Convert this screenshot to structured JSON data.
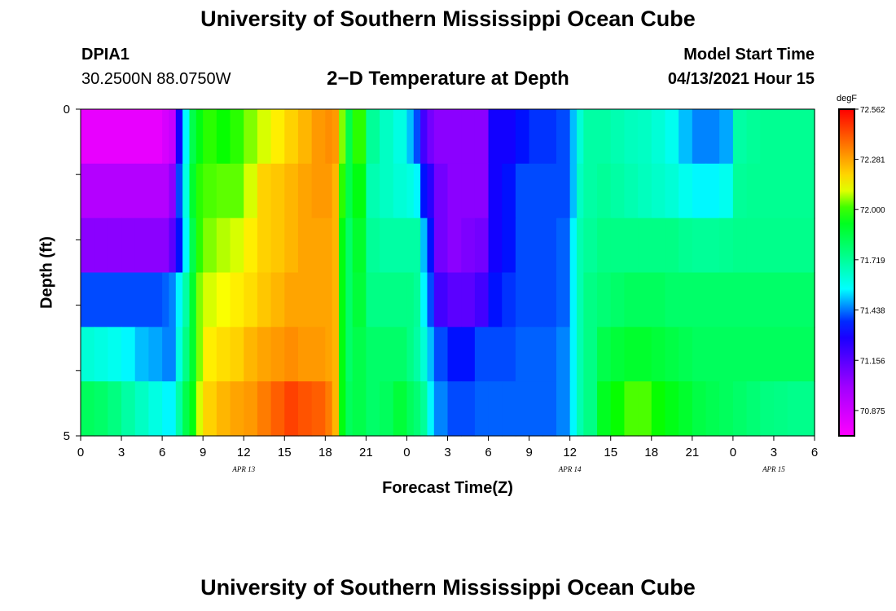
{
  "header": {
    "title_top": "University of Southern Mississippi Ocean Cube",
    "title_bottom": "University of Southern Mississippi Ocean Cube",
    "station_id": "DPIA1",
    "station_coords": "30.2500N  88.0750W",
    "plot_title": "2−D Temperature at Depth",
    "model_start_label": "Model Start Time",
    "model_start_value": "04/13/2021 Hour 15"
  },
  "chart_data": {
    "type": "heatmap",
    "title": "2−D Temperature at Depth",
    "xlabel": "Forecast Time(Z)",
    "ylabel": "Depth (ft)",
    "x_range_hours": [
      0,
      54
    ],
    "y_range_ft": [
      0,
      5
    ],
    "y_tick_labels": [
      "0",
      "5"
    ],
    "x_tick_labels": [
      "0",
      "3",
      "6",
      "9",
      "12",
      "15",
      "18",
      "21",
      "0",
      "3",
      "6",
      "9",
      "12",
      "15",
      "18",
      "21",
      "0",
      "3",
      "6"
    ],
    "date_labels": [
      {
        "text": "APR 13",
        "hour": 12
      },
      {
        "text": "APR 14",
        "hour": 36
      },
      {
        "text": "APR 15",
        "hour": 51
      }
    ],
    "colorbar": {
      "unit": "degF",
      "min": 70.733,
      "max": 72.562,
      "tick_labels": [
        "72.562",
        "72.281",
        "72.000",
        "71.719",
        "71.438",
        "71.156",
        "70.875"
      ],
      "tick_values": [
        72.562,
        72.281,
        72.0,
        71.719,
        71.438,
        71.156,
        70.875
      ]
    },
    "time_hours": [
      0,
      1,
      2,
      3,
      4,
      5,
      6,
      6.5,
      7,
      7.5,
      8,
      8.5,
      9,
      10,
      11,
      12,
      13,
      14,
      15,
      16,
      17,
      18,
      18.5,
      19,
      19.5,
      20,
      21,
      22,
      23,
      24,
      24.5,
      25,
      25.5,
      26,
      27,
      28,
      29,
      30,
      31,
      32,
      33,
      34,
      35,
      36,
      36.5,
      37,
      38,
      39,
      40,
      41,
      42,
      43,
      44,
      45,
      46,
      47,
      48,
      49,
      50,
      51,
      52,
      53,
      54
    ],
    "depth_levels_ft": [
      0,
      1,
      2,
      3,
      4,
      5
    ],
    "temperatures_degF": [
      [
        70.8,
        70.8,
        70.8,
        70.8,
        70.8,
        70.8,
        70.85,
        70.9,
        71.3,
        71.55,
        71.85,
        71.95,
        72.0,
        71.98,
        72.0,
        72.05,
        72.1,
        72.15,
        72.2,
        72.25,
        72.3,
        72.32,
        72.3,
        72.05,
        71.85,
        72.0,
        71.72,
        71.65,
        71.6,
        71.5,
        71.4,
        71.2,
        71.1,
        71.05,
        71.05,
        71.05,
        71.05,
        71.3,
        71.3,
        71.35,
        71.38,
        71.38,
        71.4,
        71.5,
        71.62,
        71.7,
        71.7,
        71.68,
        71.66,
        71.65,
        71.62,
        71.58,
        71.5,
        71.45,
        71.45,
        71.48,
        71.7,
        71.72,
        71.73,
        71.73,
        71.73,
        71.73,
        71.73
      ],
      [
        70.95,
        70.95,
        70.95,
        70.95,
        70.95,
        70.95,
        70.95,
        71.05,
        71.4,
        71.6,
        71.9,
        72.0,
        72.02,
        72.03,
        72.03,
        72.1,
        72.2,
        72.22,
        72.25,
        72.28,
        72.3,
        72.3,
        72.25,
        72.0,
        71.85,
        71.95,
        71.68,
        71.65,
        71.62,
        71.6,
        71.55,
        71.35,
        71.25,
        71.1,
        71.05,
        71.05,
        71.05,
        71.3,
        71.35,
        71.4,
        71.4,
        71.4,
        71.4,
        71.5,
        71.65,
        71.7,
        71.72,
        71.7,
        71.68,
        71.66,
        71.64,
        71.62,
        71.58,
        71.55,
        71.55,
        71.58,
        71.72,
        71.73,
        71.73,
        71.73,
        71.73,
        71.73,
        71.73
      ],
      [
        71.05,
        71.05,
        71.05,
        71.05,
        71.05,
        71.05,
        71.05,
        71.15,
        71.35,
        71.55,
        71.85,
        72.0,
        72.05,
        72.08,
        72.1,
        72.15,
        72.2,
        72.22,
        72.25,
        72.28,
        72.28,
        72.28,
        72.25,
        71.95,
        71.8,
        71.9,
        71.72,
        71.7,
        71.7,
        71.7,
        71.7,
        71.5,
        71.35,
        71.1,
        71.05,
        71.08,
        71.1,
        71.3,
        71.35,
        71.4,
        71.4,
        71.4,
        71.42,
        71.55,
        71.68,
        71.72,
        71.75,
        71.75,
        71.75,
        71.75,
        71.75,
        71.75,
        71.73,
        71.72,
        71.72,
        71.73,
        71.74,
        71.74,
        71.74,
        71.74,
        71.74,
        71.74,
        71.74
      ],
      [
        71.4,
        71.4,
        71.4,
        71.4,
        71.4,
        71.4,
        71.42,
        71.45,
        71.55,
        71.7,
        71.9,
        72.05,
        72.1,
        72.12,
        72.15,
        72.18,
        72.22,
        72.25,
        72.28,
        72.28,
        72.28,
        72.28,
        72.25,
        71.95,
        71.8,
        71.88,
        71.75,
        71.75,
        71.75,
        71.75,
        71.72,
        71.55,
        71.4,
        71.2,
        71.15,
        71.15,
        71.2,
        71.35,
        71.38,
        71.4,
        71.4,
        71.4,
        71.42,
        71.55,
        71.68,
        71.75,
        71.78,
        71.8,
        71.82,
        71.82,
        71.82,
        71.8,
        71.8,
        71.8,
        71.8,
        71.8,
        71.8,
        71.8,
        71.8,
        71.8,
        71.8,
        71.8,
        71.8
      ],
      [
        71.62,
        71.6,
        71.58,
        71.55,
        71.5,
        71.48,
        71.45,
        71.45,
        71.6,
        71.75,
        71.9,
        72.05,
        72.15,
        72.18,
        72.2,
        72.25,
        72.28,
        72.3,
        72.32,
        72.3,
        72.3,
        72.28,
        72.25,
        71.95,
        71.8,
        71.85,
        71.8,
        71.8,
        71.8,
        71.75,
        71.7,
        71.62,
        71.5,
        71.4,
        71.35,
        71.35,
        71.4,
        71.4,
        71.4,
        71.42,
        71.42,
        71.42,
        71.45,
        71.55,
        71.68,
        71.75,
        71.85,
        71.88,
        71.9,
        71.9,
        71.88,
        71.86,
        71.84,
        71.82,
        71.82,
        71.82,
        71.82,
        71.82,
        71.82,
        71.82,
        71.82,
        71.82,
        71.82
      ],
      [
        71.82,
        71.8,
        71.76,
        71.7,
        71.65,
        71.6,
        71.55,
        71.55,
        71.7,
        71.85,
        71.95,
        72.1,
        72.2,
        72.25,
        72.28,
        72.3,
        72.35,
        72.4,
        72.45,
        72.42,
        72.4,
        72.35,
        72.25,
        71.95,
        71.82,
        71.85,
        71.8,
        71.82,
        71.88,
        71.82,
        71.78,
        71.72,
        71.55,
        71.45,
        71.4,
        71.4,
        71.42,
        71.42,
        71.42,
        71.42,
        71.42,
        71.42,
        71.45,
        71.55,
        71.68,
        71.75,
        71.92,
        71.98,
        72.02,
        72.02,
        71.98,
        71.94,
        71.9,
        71.86,
        71.84,
        71.82,
        71.8,
        71.78,
        71.76,
        71.75,
        71.74,
        71.74,
        71.74
      ]
    ]
  }
}
